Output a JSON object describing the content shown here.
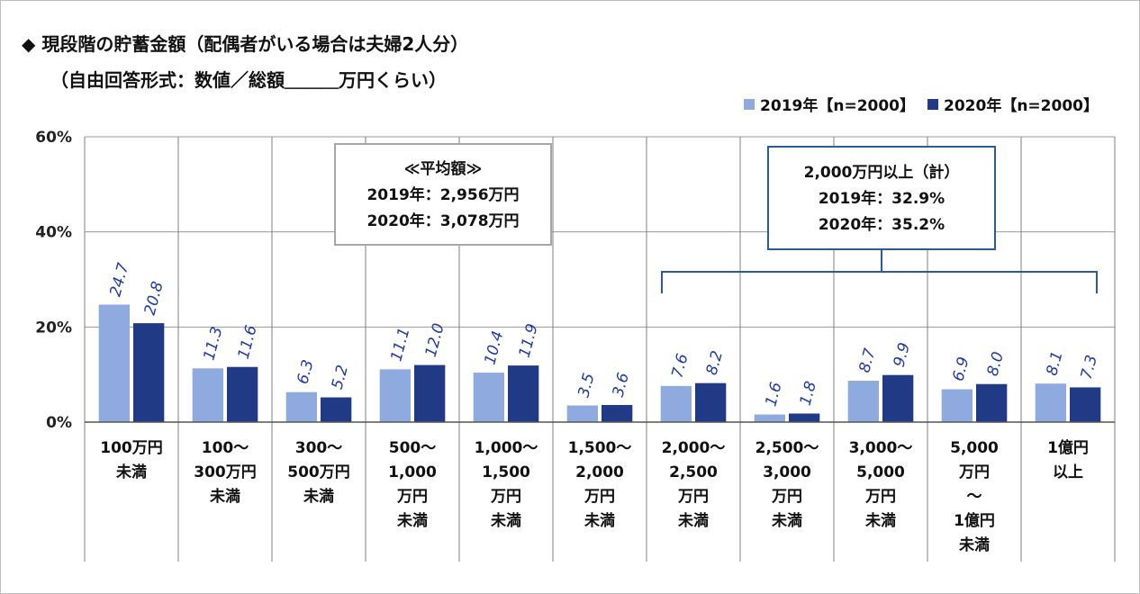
{
  "title": "◆ 現段階の貯蓄金額（配偶者がいる場合は夫婦2人分）",
  "subtitle": "（自由回答形式：数値／総額＿＿＿万円くらい）",
  "legend": {
    "s1": "2019年【n=2000】",
    "s2": "2020年【n=2000】"
  },
  "colors": {
    "s1": "#8eaadf",
    "s2": "#203a86",
    "box2": "#2e5c92",
    "box1": "#a6a6a6"
  },
  "annotation_avg": {
    "line1": "≪平均額≫",
    "line2": "2019年：2,956万円",
    "line3": "2020年：3,078万円"
  },
  "annotation_total": {
    "line1": "2,000万円以上（計）",
    "line2": "2019年：32.9%",
    "line3": "2020年：35.2%"
  },
  "chart_data": {
    "type": "bar",
    "ylim": [
      0,
      60
    ],
    "yticks": [
      "0%",
      "20%",
      "40%",
      "60%"
    ],
    "categories": [
      [
        "100万円",
        "未満"
      ],
      [
        "100～",
        "300万円",
        "未満"
      ],
      [
        "300～",
        "500万円",
        "未満"
      ],
      [
        "500～",
        "1,000",
        "万円",
        "未満"
      ],
      [
        "1,000～",
        "1,500",
        "万円",
        "未満"
      ],
      [
        "1,500～",
        "2,000",
        "万円",
        "未満"
      ],
      [
        "2,000～",
        "2,500",
        "万円",
        "未満"
      ],
      [
        "2,500～",
        "3,000",
        "万円",
        "未満"
      ],
      [
        "3,000～",
        "5,000",
        "万円",
        "未満"
      ],
      [
        "5,000",
        "万円",
        "～",
        "1億円",
        "未満"
      ],
      [
        "1億円",
        "以上"
      ]
    ],
    "series": [
      {
        "name": "2019年【n=2000】",
        "values": [
          24.7,
          11.3,
          6.3,
          11.1,
          10.4,
          3.5,
          7.6,
          1.6,
          8.7,
          6.9,
          8.1
        ]
      },
      {
        "name": "2020年【n=2000】",
        "values": [
          20.8,
          11.6,
          5.2,
          12.0,
          11.9,
          3.6,
          8.2,
          1.8,
          9.9,
          8.0,
          7.3
        ]
      }
    ]
  }
}
